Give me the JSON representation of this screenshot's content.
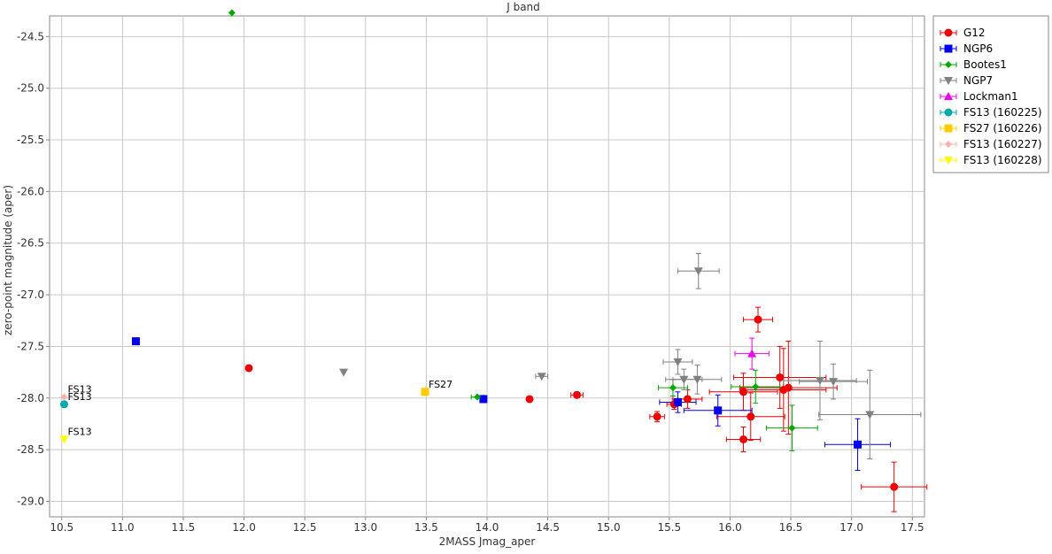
{
  "chart_data": {
    "type": "scatter",
    "title": "J band",
    "xlabel": "2MASS Jmag_aper",
    "ylabel": "zero-point magnitude (aper)",
    "xlim": [
      10.4,
      17.6
    ],
    "ylim": [
      -24.3,
      -29.15
    ],
    "y_inverted": true,
    "xticks": [
      "10.5",
      "11.0",
      "11.5",
      "12.0",
      "12.5",
      "13.0",
      "13.5",
      "14.0",
      "14.5",
      "15.0",
      "15.5",
      "16.0",
      "16.5",
      "17.0",
      "17.5"
    ],
    "yticks": [
      "-24.5",
      "-25.0",
      "-25.5",
      "-26.0",
      "-26.5",
      "-27.0",
      "-27.5",
      "-28.0",
      "-28.5",
      "-29.0"
    ],
    "grid": true,
    "legend_position": "right",
    "series": [
      {
        "name": "G12",
        "color": "#ee0000",
        "marker": "circle",
        "points": [
          {
            "x": 12.04,
            "y": -27.71
          },
          {
            "x": 14.35,
            "y": -28.01
          },
          {
            "x": 14.74,
            "y": -27.97,
            "xerr": 0.05
          },
          {
            "x": 15.4,
            "y": -28.18,
            "xerr": 0.06,
            "yerr": 0.05
          },
          {
            "x": 15.54,
            "y": -28.06,
            "xerr": 0.06,
            "yerr": 0.05
          },
          {
            "x": 15.65,
            "y": -28.01,
            "xerr": 0.12,
            "yerr": 0.09
          },
          {
            "x": 16.11,
            "y": -27.94,
            "xerr": 0.28,
            "yerr": 0.18
          },
          {
            "x": 16.11,
            "y": -28.4,
            "xerr": 0.14,
            "yerr": 0.12
          },
          {
            "x": 16.17,
            "y": -28.18,
            "xerr": 0.28,
            "yerr": 0.23
          },
          {
            "x": 16.23,
            "y": -27.24,
            "xerr": 0.12,
            "yerr": 0.12
          },
          {
            "x": 16.41,
            "y": -27.8,
            "xerr": 0.38,
            "yerr": 0.3
          },
          {
            "x": 16.44,
            "y": -27.92,
            "xerr": 0.35,
            "yerr": 0.4
          },
          {
            "x": 16.48,
            "y": -27.9,
            "xerr": 0.4,
            "yerr": 0.45
          },
          {
            "x": 17.35,
            "y": -28.86,
            "xerr": 0.27,
            "yerr": 0.24
          }
        ]
      },
      {
        "name": "NGP6",
        "color": "#0000ee",
        "marker": "square",
        "points": [
          {
            "x": 11.11,
            "y": -27.45
          },
          {
            "x": 13.97,
            "y": -28.01
          },
          {
            "x": 15.57,
            "y": -28.04,
            "xerr": 0.15,
            "yerr": 0.1
          },
          {
            "x": 15.9,
            "y": -28.12,
            "xerr": 0.28,
            "yerr": 0.15
          },
          {
            "x": 17.05,
            "y": -28.45,
            "xerr": 0.27,
            "yerr": 0.25
          }
        ]
      },
      {
        "name": "Bootes1",
        "color": "#00aa00",
        "marker": "diamond",
        "points": [
          {
            "x": 11.9,
            "y": -24.27
          },
          {
            "x": 13.92,
            "y": -27.99,
            "xerr": 0.05
          },
          {
            "x": 15.53,
            "y": -27.9,
            "xerr": 0.12,
            "yerr": 0.08
          },
          {
            "x": 16.21,
            "y": -27.89,
            "xerr": 0.2,
            "yerr": 0.16
          },
          {
            "x": 16.51,
            "y": -28.29,
            "xerr": 0.21,
            "yerr": 0.22
          }
        ]
      },
      {
        "name": "NGP7",
        "color": "#808080",
        "marker": "triangle-down",
        "points": [
          {
            "x": 12.82,
            "y": -27.75
          },
          {
            "x": 14.45,
            "y": -27.79,
            "xerr": 0.05
          },
          {
            "x": 15.57,
            "y": -27.65,
            "xerr": 0.12,
            "yerr": 0.12
          },
          {
            "x": 15.62,
            "y": -27.82,
            "xerr": 0.15,
            "yerr": 0.1
          },
          {
            "x": 15.73,
            "y": -27.82,
            "xerr": 0.2,
            "yerr": 0.14
          },
          {
            "x": 15.74,
            "y": -26.77,
            "xerr": 0.17,
            "yerr": 0.17
          },
          {
            "x": 16.74,
            "y": -27.83,
            "xerr": 0.3,
            "yerr": 0.38
          },
          {
            "x": 16.85,
            "y": -27.84,
            "xerr": 0.28,
            "yerr": 0.17
          },
          {
            "x": 17.15,
            "y": -28.16,
            "xerr": 0.42,
            "yerr": 0.43
          }
        ]
      },
      {
        "name": "Lockman1",
        "color": "#ee00ee",
        "marker": "triangle-up",
        "points": [
          {
            "x": 16.18,
            "y": -27.57,
            "xerr": 0.14,
            "yerr": 0.15
          }
        ]
      },
      {
        "name": "FS13 (160225)",
        "color": "#00aaaa",
        "marker": "circle",
        "points": [
          {
            "x": 10.52,
            "y": -28.06,
            "label": "FS13"
          }
        ]
      },
      {
        "name": "FS27 (160226)",
        "color": "#ffcc00",
        "marker": "square",
        "points": [
          {
            "x": 13.49,
            "y": -27.94,
            "label": "FS27"
          }
        ]
      },
      {
        "name": "FS13 (160227)",
        "color": "#ffb0b0",
        "marker": "diamond",
        "points": [
          {
            "x": 10.52,
            "y": -27.99,
            "label": "FS13"
          }
        ]
      },
      {
        "name": "FS13 (160228)",
        "color": "#ffff00",
        "marker": "triangle-down",
        "points": [
          {
            "x": 10.52,
            "y": -28.4,
            "label": "FS13"
          }
        ]
      }
    ]
  }
}
